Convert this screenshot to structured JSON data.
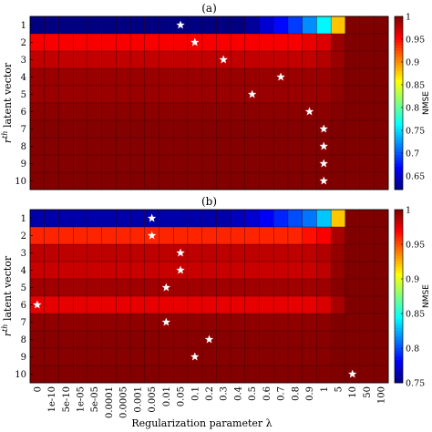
{
  "chart_data": [
    {
      "type": "heatmap",
      "panel_label": "(a)",
      "x_categories": [
        "0",
        "1e-10",
        "5e-10",
        "1e-05",
        "5e-05",
        "0.0001",
        "0.0005",
        "0.001",
        "0.005",
        "0.01",
        "0.05",
        "0.1",
        "0.2",
        "0.3",
        "0.4",
        "0.5",
        "0.6",
        "0.7",
        "0.8",
        "0.9",
        "1",
        "5",
        "10",
        "50",
        "100"
      ],
      "y_categories": [
        "1",
        "2",
        "3",
        "4",
        "5",
        "6",
        "7",
        "8",
        "9",
        "10"
      ],
      "ylabel": "r^th latent vector",
      "colorbar": {
        "label": "NMSE",
        "range": [
          0.62,
          1.0
        ],
        "ticks": [
          "0.65",
          "0.7",
          "0.75",
          "0.8",
          "0.85",
          "0.9",
          "0.95",
          "1"
        ],
        "tick_values": [
          0.65,
          0.7,
          0.75,
          0.8,
          0.85,
          0.9,
          0.95,
          1.0
        ]
      },
      "colormap": "jet",
      "values": [
        [
          0.62,
          0.62,
          0.62,
          0.62,
          0.62,
          0.62,
          0.62,
          0.62,
          0.62,
          0.62,
          0.62,
          0.62,
          0.62,
          0.62,
          0.62,
          0.63,
          0.65,
          0.67,
          0.69,
          0.72,
          0.76,
          0.88,
          1.0,
          1.0,
          1.0
        ],
        [
          0.955,
          0.955,
          0.955,
          0.955,
          0.955,
          0.955,
          0.955,
          0.955,
          0.955,
          0.955,
          0.955,
          0.955,
          0.955,
          0.955,
          0.955,
          0.955,
          0.955,
          0.955,
          0.955,
          0.96,
          0.965,
          0.99,
          1.0,
          1.0,
          1.0
        ],
        [
          0.975,
          0.975,
          0.975,
          0.975,
          0.975,
          0.975,
          0.975,
          0.975,
          0.975,
          0.975,
          0.975,
          0.975,
          0.975,
          0.975,
          0.975,
          0.975,
          0.975,
          0.975,
          0.975,
          0.975,
          0.98,
          0.99,
          1.0,
          1.0,
          1.0
        ],
        [
          0.99,
          0.99,
          0.99,
          0.99,
          0.99,
          0.99,
          0.99,
          0.99,
          0.99,
          0.99,
          0.99,
          0.99,
          0.99,
          0.99,
          0.99,
          0.99,
          0.99,
          0.99,
          0.99,
          0.99,
          0.99,
          0.995,
          1.0,
          1.0,
          1.0
        ],
        [
          0.99,
          0.99,
          0.99,
          0.99,
          0.99,
          0.99,
          0.99,
          0.99,
          0.99,
          0.99,
          0.99,
          0.99,
          0.99,
          0.99,
          0.99,
          0.99,
          0.99,
          0.99,
          0.99,
          0.99,
          0.99,
          0.995,
          1.0,
          1.0,
          1.0
        ],
        [
          0.995,
          0.995,
          0.995,
          0.995,
          0.995,
          0.995,
          0.995,
          0.995,
          0.995,
          0.995,
          0.995,
          0.995,
          0.995,
          0.995,
          0.995,
          0.995,
          0.995,
          0.995,
          0.995,
          0.995,
          0.995,
          0.998,
          1.0,
          1.0,
          1.0
        ],
        [
          0.998,
          0.998,
          0.998,
          0.998,
          0.998,
          0.998,
          0.998,
          0.998,
          0.998,
          0.998,
          0.998,
          0.998,
          0.998,
          0.998,
          0.998,
          0.998,
          0.998,
          0.998,
          0.998,
          0.998,
          0.998,
          1.0,
          1.0,
          1.0,
          1.0
        ],
        [
          0.998,
          0.998,
          0.998,
          0.998,
          0.998,
          0.998,
          0.998,
          0.998,
          0.998,
          0.998,
          0.998,
          0.998,
          0.998,
          0.998,
          0.998,
          0.998,
          0.998,
          0.998,
          0.998,
          0.998,
          0.998,
          1.0,
          1.0,
          1.0,
          1.0
        ],
        [
          0.998,
          0.998,
          0.998,
          0.998,
          0.998,
          0.998,
          0.998,
          0.998,
          0.998,
          0.998,
          0.998,
          0.998,
          0.998,
          0.998,
          0.998,
          0.998,
          0.998,
          0.998,
          0.998,
          0.998,
          0.998,
          1.0,
          1.0,
          1.0,
          1.0
        ],
        [
          0.999,
          0.999,
          0.999,
          0.999,
          0.999,
          0.999,
          0.999,
          0.999,
          0.999,
          0.999,
          0.999,
          0.999,
          0.999,
          0.999,
          0.999,
          0.999,
          0.999,
          0.999,
          0.999,
          0.999,
          0.999,
          1.0,
          1.0,
          1.0,
          1.0
        ]
      ],
      "best_lambda_markers": [
        {
          "row": "1",
          "lambda": "0.05"
        },
        {
          "row": "2",
          "lambda": "0.1"
        },
        {
          "row": "3",
          "lambda": "0.3"
        },
        {
          "row": "4",
          "lambda": "0.7"
        },
        {
          "row": "5",
          "lambda": "0.5"
        },
        {
          "row": "6",
          "lambda": "0.9"
        },
        {
          "row": "7",
          "lambda": "1"
        },
        {
          "row": "8",
          "lambda": "1"
        },
        {
          "row": "9",
          "lambda": "1"
        },
        {
          "row": "10",
          "lambda": "1"
        }
      ]
    },
    {
      "type": "heatmap",
      "panel_label": "(b)",
      "x_categories": [
        "0",
        "1e-10",
        "5e-10",
        "1e-05",
        "5e-05",
        "0.0001",
        "0.0005",
        "0.001",
        "0.005",
        "0.01",
        "0.05",
        "0.1",
        "0.2",
        "0.3",
        "0.4",
        "0.5",
        "0.6",
        "0.7",
        "0.8",
        "0.9",
        "1",
        "5",
        "10",
        "50",
        "100"
      ],
      "y_categories": [
        "1",
        "2",
        "3",
        "4",
        "5",
        "6",
        "7",
        "8",
        "9",
        "10"
      ],
      "xlabel": "Regularization parameter λ",
      "ylabel": "r^th latent vector",
      "colorbar": {
        "label": "NMSE",
        "range": [
          0.75,
          1.0
        ],
        "ticks": [
          "0.75",
          "0.8",
          "0.85",
          "0.9",
          "0.95",
          "1"
        ],
        "tick_values": [
          0.75,
          0.8,
          0.85,
          0.9,
          0.95,
          1.0
        ]
      },
      "colormap": "jet",
      "values": [
        [
          0.76,
          0.76,
          0.76,
          0.76,
          0.76,
          0.76,
          0.76,
          0.76,
          0.76,
          0.76,
          0.76,
          0.76,
          0.76,
          0.76,
          0.765,
          0.77,
          0.78,
          0.79,
          0.8,
          0.81,
          0.83,
          0.92,
          1.0,
          1.0,
          1.0
        ],
        [
          0.96,
          0.96,
          0.96,
          0.96,
          0.96,
          0.96,
          0.96,
          0.96,
          0.96,
          0.96,
          0.96,
          0.96,
          0.96,
          0.96,
          0.96,
          0.96,
          0.96,
          0.96,
          0.96,
          0.965,
          0.97,
          0.99,
          1.0,
          1.0,
          1.0
        ],
        [
          0.985,
          0.985,
          0.985,
          0.985,
          0.985,
          0.985,
          0.985,
          0.985,
          0.985,
          0.985,
          0.985,
          0.985,
          0.985,
          0.985,
          0.985,
          0.985,
          0.985,
          0.985,
          0.985,
          0.985,
          0.988,
          0.995,
          1.0,
          1.0,
          1.0
        ],
        [
          0.982,
          0.982,
          0.982,
          0.982,
          0.982,
          0.982,
          0.982,
          0.982,
          0.982,
          0.982,
          0.982,
          0.982,
          0.982,
          0.982,
          0.982,
          0.982,
          0.982,
          0.982,
          0.982,
          0.982,
          0.985,
          0.995,
          1.0,
          1.0,
          1.0
        ],
        [
          0.992,
          0.992,
          0.992,
          0.992,
          0.992,
          0.992,
          0.992,
          0.992,
          0.992,
          0.992,
          0.992,
          0.992,
          0.992,
          0.992,
          0.992,
          0.992,
          0.992,
          0.992,
          0.992,
          0.992,
          0.993,
          0.998,
          1.0,
          1.0,
          1.0
        ],
        [
          0.975,
          0.975,
          0.975,
          0.975,
          0.975,
          0.975,
          0.975,
          0.975,
          0.975,
          0.975,
          0.975,
          0.975,
          0.975,
          0.975,
          0.975,
          0.975,
          0.975,
          0.975,
          0.975,
          0.975,
          0.978,
          0.99,
          1.0,
          1.0,
          1.0
        ],
        [
          0.996,
          0.996,
          0.996,
          0.996,
          0.996,
          0.996,
          0.996,
          0.996,
          0.996,
          0.996,
          0.996,
          0.996,
          0.996,
          0.996,
          0.996,
          0.996,
          0.996,
          0.996,
          0.996,
          0.996,
          0.997,
          1.0,
          1.0,
          1.0,
          1.0
        ],
        [
          0.998,
          0.998,
          0.998,
          0.998,
          0.998,
          0.998,
          0.998,
          0.998,
          0.998,
          0.998,
          0.998,
          0.998,
          0.998,
          0.998,
          0.998,
          0.998,
          0.998,
          0.998,
          0.998,
          0.998,
          0.998,
          1.0,
          1.0,
          1.0,
          1.0
        ],
        [
          0.998,
          0.998,
          0.998,
          0.998,
          0.998,
          0.998,
          0.998,
          0.998,
          0.998,
          0.998,
          0.998,
          0.998,
          0.998,
          0.998,
          0.998,
          0.998,
          0.998,
          0.998,
          0.998,
          0.998,
          0.998,
          1.0,
          1.0,
          1.0,
          1.0
        ],
        [
          0.999,
          0.999,
          0.999,
          0.999,
          0.999,
          0.999,
          0.999,
          0.999,
          0.999,
          0.999,
          0.999,
          0.999,
          0.999,
          0.999,
          0.999,
          0.999,
          0.999,
          0.999,
          0.999,
          0.999,
          0.999,
          1.0,
          1.0,
          1.0,
          1.0
        ]
      ],
      "best_lambda_markers": [
        {
          "row": "1",
          "lambda": "0.005"
        },
        {
          "row": "2",
          "lambda": "0.005"
        },
        {
          "row": "3",
          "lambda": "0.05"
        },
        {
          "row": "4",
          "lambda": "0.05"
        },
        {
          "row": "5",
          "lambda": "0.01"
        },
        {
          "row": "6",
          "lambda": "0"
        },
        {
          "row": "7",
          "lambda": "0.01"
        },
        {
          "row": "8",
          "lambda": "0.2"
        },
        {
          "row": "9",
          "lambda": "0.1"
        },
        {
          "row": "10",
          "lambda": "10"
        }
      ]
    }
  ]
}
